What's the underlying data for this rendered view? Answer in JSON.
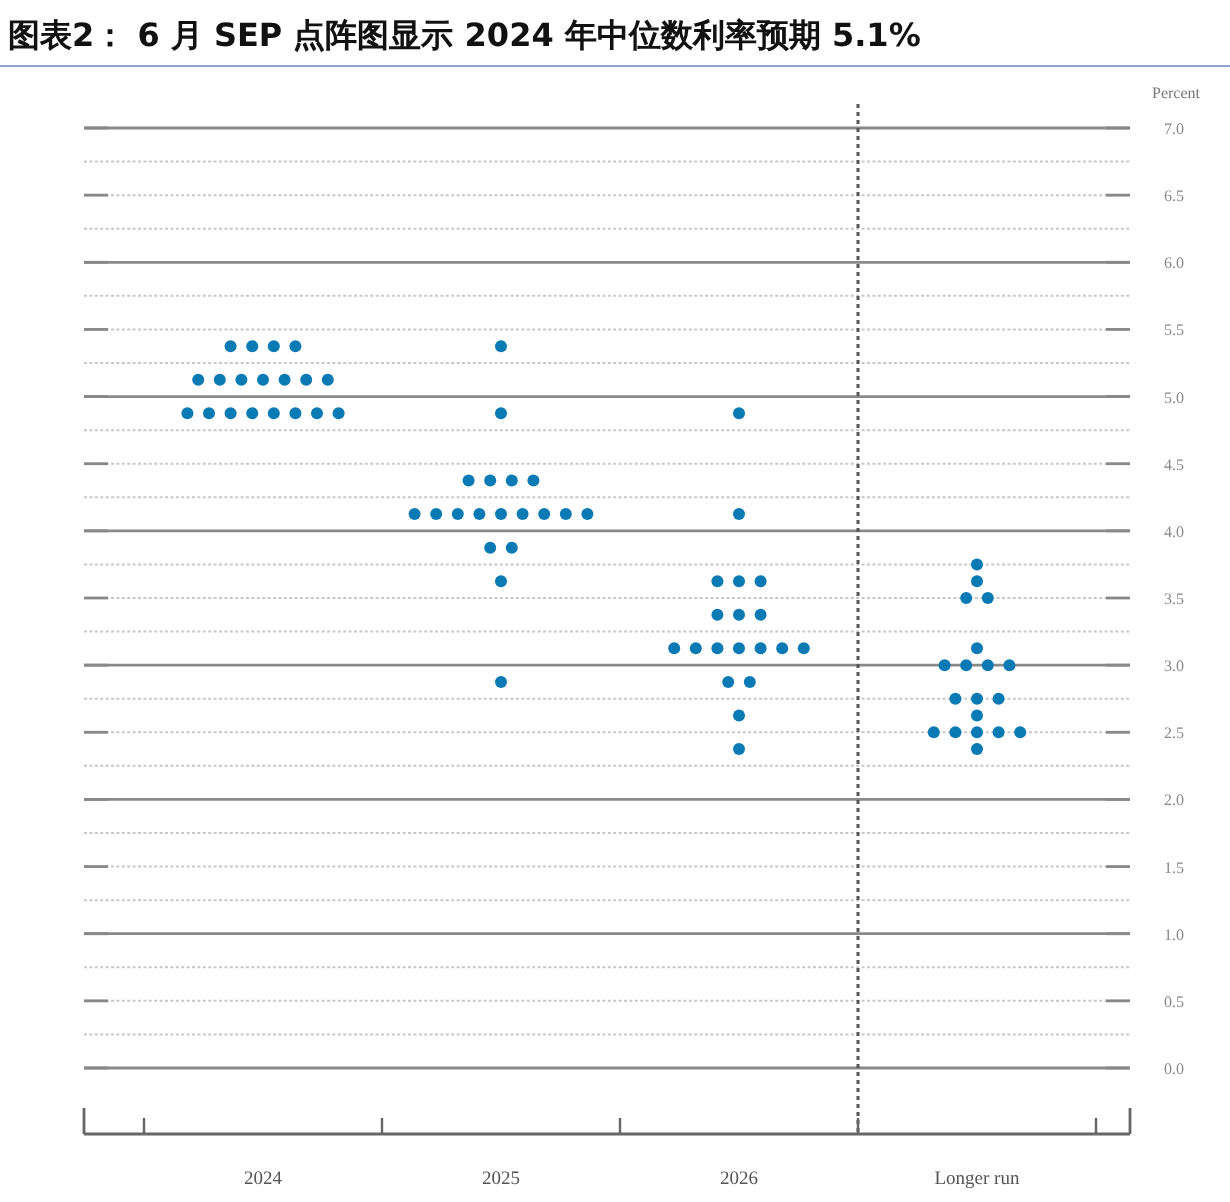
{
  "chart_data": {
    "type": "scatter",
    "title": "图表2：  6 月 SEP 点阵图显示 2024 年中位数利率预期 5.1%",
    "ylabel": "Percent",
    "categories": [
      "2024",
      "2025",
      "2026",
      "Longer run"
    ],
    "series": [
      {
        "color": "#0a7ab5",
        "values": [
          5.375,
          5.375,
          4.875,
          3.75
        ]
      },
      {
        "color": "#0a7ab5",
        "values": [
          5.375,
          4.875,
          4.125,
          3.625
        ]
      },
      {
        "color": "#0a7ab5",
        "values": [
          5.375,
          4.375,
          3.625,
          3.5
        ]
      },
      {
        "color": "#0a7ab5",
        "values": [
          5.375,
          4.375,
          3.625,
          3.5
        ]
      },
      {
        "color": "#0a7ab5",
        "values": [
          5.125,
          4.375,
          3.625,
          3.125
        ]
      },
      {
        "color": "#0a7ab5",
        "values": [
          5.125,
          4.375,
          3.375,
          3.0
        ]
      },
      {
        "color": "#0a7ab5",
        "values": [
          5.125,
          4.125,
          3.375,
          3.0
        ]
      },
      {
        "color": "#0a7ab5",
        "values": [
          5.125,
          4.125,
          3.375,
          3.0
        ]
      },
      {
        "color": "#0a7ab5",
        "values": [
          5.125,
          4.125,
          3.125,
          3.0
        ]
      },
      {
        "color": "#0a7ab5",
        "values": [
          5.125,
          4.125,
          3.125,
          2.75
        ]
      },
      {
        "color": "#0a7ab5",
        "values": [
          5.125,
          4.125,
          3.125,
          2.75
        ]
      },
      {
        "color": "#0a7ab5",
        "values": [
          4.875,
          4.125,
          3.125,
          2.75
        ]
      },
      {
        "color": "#0a7ab5",
        "values": [
          4.875,
          4.125,
          3.125,
          2.625
        ]
      },
      {
        "color": "#0a7ab5",
        "values": [
          4.875,
          4.125,
          3.125,
          2.5
        ]
      },
      {
        "color": "#0a7ab5",
        "values": [
          4.875,
          4.125,
          3.125,
          2.5
        ]
      },
      {
        "color": "#0a7ab5",
        "values": [
          4.875,
          3.875,
          2.875,
          2.5
        ]
      },
      {
        "color": "#0a7ab5",
        "values": [
          4.875,
          3.875,
          2.875,
          2.5
        ]
      },
      {
        "color": "#0a7ab5",
        "values": [
          4.875,
          3.625,
          2.625,
          2.5
        ]
      },
      {
        "color": "#0a7ab5",
        "values": [
          4.875,
          2.875,
          2.375,
          2.375
        ]
      }
    ],
    "ylim": [
      0,
      7
    ],
    "yticks": [
      {
        "value": 0,
        "label": "0.0"
      },
      {
        "value": 0.5,
        "label": "0.5"
      },
      {
        "value": 1,
        "label": "1.0"
      },
      {
        "value": 1.5,
        "label": "1.5"
      },
      {
        "value": 2,
        "label": "2.0"
      },
      {
        "value": 2.5,
        "label": "2.5"
      },
      {
        "value": 3,
        "label": "3.0"
      },
      {
        "value": 3.5,
        "label": "3.5"
      },
      {
        "value": 4,
        "label": "4.0"
      },
      {
        "value": 4.5,
        "label": "4.5"
      },
      {
        "value": 5,
        "label": "5.0"
      },
      {
        "value": 5.5,
        "label": "5.5"
      },
      {
        "value": 6,
        "label": "6.0"
      },
      {
        "value": 6.5,
        "label": "6.5"
      },
      {
        "value": 7,
        "label": "7.0"
      }
    ],
    "grid": "y",
    "marker": "circle"
  }
}
